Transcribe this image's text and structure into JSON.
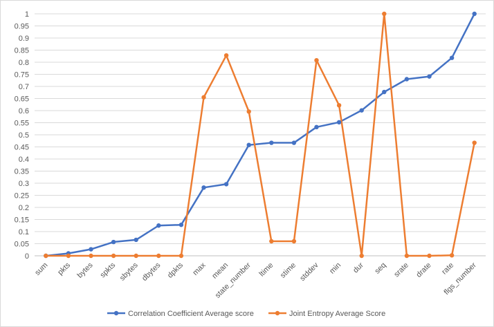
{
  "chart_data": {
    "type": "line",
    "title": "",
    "xlabel": "",
    "ylabel": "",
    "ylim": [
      0,
      1
    ],
    "yticks": [
      "0",
      "0.05",
      "0.1",
      "0.15",
      "0.2",
      "0.25",
      "0.3",
      "0.35",
      "0.4",
      "0.45",
      "0.5",
      "0.55",
      "0.6",
      "0.65",
      "0.7",
      "0.75",
      "0.8",
      "0.85",
      "0.9",
      "0.95",
      "1"
    ],
    "grid": true,
    "legend_position": "bottom",
    "categories": [
      "sum",
      "pkts",
      "bytes",
      "spkts",
      "sbytes",
      "dbytes",
      "dpkts",
      "max",
      "mean",
      "state_number",
      "ltime",
      "stime",
      "stddev",
      "min",
      "dur",
      "seq",
      "srate",
      "drate",
      "rate",
      "flgs_number"
    ],
    "series": [
      {
        "name": "Correlation Coefficient Average score",
        "color": "#4472c4",
        "values": [
          0.0,
          0.01,
          0.027,
          0.057,
          0.066,
          0.125,
          0.128,
          0.282,
          0.296,
          0.458,
          0.467,
          0.467,
          0.532,
          0.552,
          0.601,
          0.677,
          0.73,
          0.741,
          0.818,
          1.0
        ]
      },
      {
        "name": "Joint Entropy Average Score",
        "color": "#ed7d31",
        "values": [
          0.0,
          0.0,
          0.0,
          0.0,
          0.0,
          0.0,
          0.0,
          0.655,
          0.828,
          0.596,
          0.06,
          0.06,
          0.808,
          0.622,
          0.0,
          1.0,
          0.0,
          0.0,
          0.002,
          0.467
        ]
      }
    ]
  }
}
